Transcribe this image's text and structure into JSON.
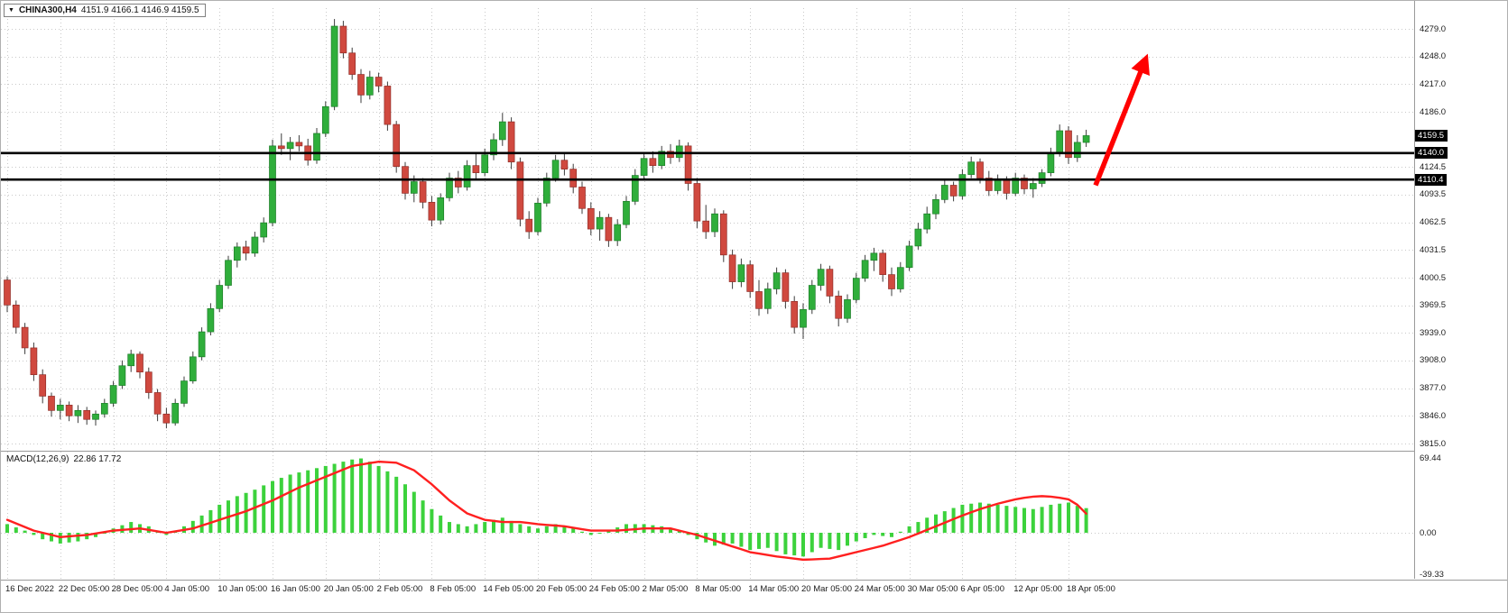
{
  "header": {
    "symbol_period": "CHINA300,H4",
    "ohlc_text": "4151.9 4166.1 4146.9 4159.5"
  },
  "icons": {
    "symbol_dropdown": "▼"
  },
  "colors": {
    "up": "#2fae3b",
    "up_border": "#1d7c28",
    "down": "#d0493f",
    "down_border": "#8f2e28",
    "wick": "#3c3c3c",
    "grid": "#c9c9c9",
    "hline": "#000000",
    "arrow": "#ff0000",
    "macd_bar": "#3cd23c",
    "macd_signal": "#ff2020",
    "badge_bg": "#000000",
    "badge_text": "#ffffff"
  },
  "chart_data": {
    "type": "candlestick",
    "title": "CHINA300,H4",
    "symbol": "CHINA300",
    "timeframe": "H4",
    "ohlc_display": {
      "open": "4151.9",
      "high": "4166.1",
      "low": "4146.9",
      "close": "4159.5"
    },
    "price_axis": {
      "ticks": [
        "4279.0",
        "4248.0",
        "4217.0",
        "4186.0",
        "4124.5",
        "4093.5",
        "4062.5",
        "4031.5",
        "4000.5",
        "3969.5",
        "3939.0",
        "3908.0",
        "3877.0",
        "3846.0",
        "3815.0"
      ],
      "badges": [
        "4159.5",
        "4140.0",
        "4110.4"
      ],
      "range": [
        3815,
        4290
      ]
    },
    "x_axis": {
      "labels": [
        "16 Dec 2022",
        "22 Dec 05:00",
        "28 Dec 05:00",
        "4 Jan 05:00",
        "10 Jan 05:00",
        "16 Jan 05:00",
        "20 Jan 05:00",
        "2 Feb 05:00",
        "8 Feb 05:00",
        "14 Feb 05:00",
        "20 Feb 05:00",
        "24 Feb 05:00",
        "2 Mar 05:00",
        "8 Mar 05:00",
        "14 Mar 05:00",
        "20 Mar 05:00",
        "24 Mar 05:00",
        "30 Mar 05:00",
        "6 Apr 05:00",
        "12 Apr 05:00",
        "18 Apr 05:00"
      ]
    },
    "hlines": [
      4140.0,
      4110.4
    ],
    "arrow": {
      "direction": "up",
      "from_price": 4104,
      "to_price": 4252
    },
    "candles": [
      [
        3998,
        4002,
        3962,
        3970
      ],
      [
        3970,
        3975,
        3938,
        3945
      ],
      [
        3945,
        3950,
        3915,
        3922
      ],
      [
        3922,
        3928,
        3885,
        3892
      ],
      [
        3892,
        3898,
        3860,
        3868
      ],
      [
        3868,
        3872,
        3845,
        3852
      ],
      [
        3852,
        3865,
        3842,
        3858
      ],
      [
        3858,
        3862,
        3840,
        3846
      ],
      [
        3846,
        3858,
        3838,
        3852
      ],
      [
        3852,
        3856,
        3836,
        3842
      ],
      [
        3842,
        3852,
        3835,
        3848
      ],
      [
        3848,
        3865,
        3844,
        3860
      ],
      [
        3860,
        3885,
        3856,
        3880
      ],
      [
        3880,
        3908,
        3876,
        3902
      ],
      [
        3902,
        3920,
        3895,
        3915
      ],
      [
        3915,
        3918,
        3888,
        3895
      ],
      [
        3895,
        3900,
        3865,
        3872
      ],
      [
        3872,
        3876,
        3840,
        3848
      ],
      [
        3848,
        3855,
        3832,
        3838
      ],
      [
        3838,
        3865,
        3835,
        3860
      ],
      [
        3860,
        3890,
        3856,
        3885
      ],
      [
        3885,
        3918,
        3882,
        3912
      ],
      [
        3912,
        3945,
        3908,
        3940
      ],
      [
        3940,
        3972,
        3936,
        3966
      ],
      [
        3966,
        3998,
        3962,
        3992
      ],
      [
        3992,
        4025,
        3988,
        4020
      ],
      [
        4020,
        4040,
        4012,
        4035
      ],
      [
        4035,
        4042,
        4020,
        4028
      ],
      [
        4028,
        4052,
        4024,
        4046
      ],
      [
        4046,
        4068,
        4040,
        4062
      ],
      [
        4062,
        4155,
        4058,
        4148
      ],
      [
        4148,
        4162,
        4138,
        4145
      ],
      [
        4145,
        4158,
        4132,
        4152
      ],
      [
        4152,
        4160,
        4142,
        4148
      ],
      [
        4148,
        4156,
        4126,
        4132
      ],
      [
        4132,
        4168,
        4128,
        4162
      ],
      [
        4162,
        4198,
        4158,
        4192
      ],
      [
        4192,
        4290,
        4188,
        4282
      ],
      [
        4282,
        4288,
        4246,
        4252
      ],
      [
        4252,
        4258,
        4222,
        4228
      ],
      [
        4228,
        4234,
        4196,
        4205
      ],
      [
        4205,
        4232,
        4200,
        4225
      ],
      [
        4225,
        4230,
        4208,
        4215
      ],
      [
        4215,
        4220,
        4165,
        4172
      ],
      [
        4172,
        4176,
        4118,
        4125
      ],
      [
        4125,
        4130,
        4088,
        4095
      ],
      [
        4095,
        4115,
        4085,
        4108
      ],
      [
        4108,
        4112,
        4078,
        4085
      ],
      [
        4085,
        4092,
        4058,
        4065
      ],
      [
        4065,
        4095,
        4060,
        4090
      ],
      [
        4090,
        4118,
        4086,
        4112
      ],
      [
        4112,
        4120,
        4095,
        4102
      ],
      [
        4102,
        4132,
        4098,
        4126
      ],
      [
        4126,
        4140,
        4110,
        4118
      ],
      [
        4118,
        4145,
        4114,
        4138
      ],
      [
        4138,
        4162,
        4132,
        4155
      ],
      [
        4155,
        4185,
        4148,
        4175
      ],
      [
        4175,
        4180,
        4122,
        4130
      ],
      [
        4130,
        4135,
        4058,
        4066
      ],
      [
        4066,
        4075,
        4044,
        4052
      ],
      [
        4052,
        4090,
        4048,
        4084
      ],
      [
        4084,
        4118,
        4080,
        4112
      ],
      [
        4112,
        4138,
        4108,
        4132
      ],
      [
        4132,
        4140,
        4115,
        4122
      ],
      [
        4122,
        4128,
        4095,
        4102
      ],
      [
        4102,
        4108,
        4072,
        4078
      ],
      [
        4078,
        4085,
        4048,
        4055
      ],
      [
        4055,
        4075,
        4042,
        4068
      ],
      [
        4068,
        4072,
        4035,
        4042
      ],
      [
        4042,
        4066,
        4036,
        4060
      ],
      [
        4060,
        4092,
        4056,
        4086
      ],
      [
        4086,
        4122,
        4082,
        4115
      ],
      [
        4115,
        4140,
        4110,
        4134
      ],
      [
        4134,
        4142,
        4118,
        4126
      ],
      [
        4126,
        4148,
        4122,
        4142
      ],
      [
        4142,
        4150,
        4128,
        4135
      ],
      [
        4135,
        4155,
        4130,
        4148
      ],
      [
        4148,
        4152,
        4098,
        4106
      ],
      [
        4106,
        4112,
        4056,
        4064
      ],
      [
        4064,
        4082,
        4044,
        4052
      ],
      [
        4052,
        4078,
        4046,
        4072
      ],
      [
        4072,
        4076,
        4018,
        4026
      ],
      [
        4026,
        4032,
        3988,
        3996
      ],
      [
        3996,
        4022,
        3990,
        4015
      ],
      [
        4015,
        4020,
        3978,
        3985
      ],
      [
        3985,
        3998,
        3958,
        3966
      ],
      [
        3966,
        3995,
        3960,
        3988
      ],
      [
        3988,
        4012,
        3982,
        4006
      ],
      [
        4006,
        4010,
        3966,
        3974
      ],
      [
        3974,
        3980,
        3938,
        3945
      ],
      [
        3945,
        3972,
        3932,
        3965
      ],
      [
        3965,
        3998,
        3960,
        3992
      ],
      [
        3992,
        4016,
        3986,
        4010
      ],
      [
        4010,
        4014,
        3972,
        3980
      ],
      [
        3980,
        3986,
        3946,
        3955
      ],
      [
        3955,
        3982,
        3950,
        3976
      ],
      [
        3976,
        4006,
        3972,
        4000
      ],
      [
        4000,
        4026,
        3996,
        4020
      ],
      [
        4020,
        4034,
        4008,
        4028
      ],
      [
        4028,
        4032,
        3996,
        4004
      ],
      [
        4004,
        4012,
        3980,
        3988
      ],
      [
        3988,
        4018,
        3984,
        4012
      ],
      [
        4012,
        4042,
        4008,
        4036
      ],
      [
        4036,
        4062,
        4032,
        4055
      ],
      [
        4055,
        4080,
        4050,
        4072
      ],
      [
        4072,
        4094,
        4066,
        4088
      ],
      [
        4088,
        4110,
        4084,
        4104
      ],
      [
        4104,
        4108,
        4086,
        4092
      ],
      [
        4092,
        4122,
        4088,
        4116
      ],
      [
        4116,
        4136,
        4112,
        4130
      ],
      [
        4130,
        4134,
        4106,
        4112
      ],
      [
        4112,
        4120,
        4092,
        4098
      ],
      [
        4098,
        4116,
        4094,
        4110
      ],
      [
        4110,
        4114,
        4088,
        4095
      ],
      [
        4095,
        4118,
        4092,
        4112
      ],
      [
        4112,
        4116,
        4094,
        4100
      ],
      [
        4100,
        4112,
        4090,
        4106
      ],
      [
        4106,
        4122,
        4102,
        4118
      ],
      [
        4118,
        4146,
        4114,
        4140
      ],
      [
        4140,
        4172,
        4136,
        4165
      ],
      [
        4165,
        4170,
        4128,
        4135
      ],
      [
        4135,
        4160,
        4130,
        4152
      ],
      [
        4151.9,
        4166.1,
        4146.9,
        4159.5
      ]
    ],
    "macd": {
      "label": "MACD(12,26,9)",
      "values_text": "22.86 17.72",
      "main_value": 22.86,
      "signal_value": 17.72,
      "axis_ticks": [
        "69.44",
        "0.00",
        "-39.33"
      ],
      "histogram": [
        8,
        5,
        2,
        -2,
        -6,
        -8,
        -10,
        -9,
        -8,
        -6,
        -4,
        0,
        4,
        7,
        10,
        8,
        6,
        2,
        -2,
        2,
        6,
        11,
        16,
        21,
        26,
        30,
        34,
        37,
        40,
        44,
        48,
        51,
        54,
        56,
        58,
        60,
        62,
        64,
        66,
        68,
        69,
        66,
        62,
        57,
        52,
        45,
        38,
        30,
        22,
        16,
        10,
        8,
        6,
        8,
        10,
        12,
        14,
        11,
        8,
        6,
        4,
        6,
        8,
        6,
        4,
        1,
        -2,
        0,
        2,
        5,
        8,
        8,
        8,
        7,
        6,
        4,
        2,
        -2,
        -6,
        -9,
        -12,
        -11,
        -10,
        -13,
        -16,
        -15,
        -14,
        -17,
        -20,
        -21,
        -22,
        -18,
        -14,
        -15,
        -16,
        -12,
        -8,
        -5,
        -2,
        -3,
        -4,
        1,
        6,
        10,
        14,
        17,
        20,
        23,
        26,
        27,
        28,
        27,
        26,
        25,
        24,
        23,
        22,
        24,
        26,
        27,
        28,
        25,
        22.86
      ],
      "signal": [
        12,
        8.7,
        5.3,
        2,
        0,
        -2,
        -4,
        -3.3,
        -2.7,
        -2,
        -0.7,
        0.7,
        2,
        2.7,
        3.3,
        4,
        2.7,
        1.3,
        0,
        1.3,
        2.7,
        4,
        6.7,
        9.3,
        12,
        14.7,
        17.3,
        20,
        23.3,
        26.7,
        30,
        34,
        38,
        42,
        45.3,
        48.7,
        52,
        55.3,
        58.7,
        62,
        63.3,
        64.7,
        66,
        65.5,
        65,
        61.5,
        58,
        51.5,
        45,
        37.5,
        30,
        24,
        18,
        15,
        12,
        11,
        10,
        10,
        10,
        9,
        8,
        7.3,
        6.7,
        6,
        4.7,
        3.3,
        2,
        2,
        2,
        2,
        2.7,
        3.3,
        4,
        4,
        4,
        4,
        2,
        0,
        -2,
        -4.7,
        -7.3,
        -10,
        -12.7,
        -15.3,
        -18,
        -19.3,
        -20.7,
        -22,
        -23,
        -24,
        -25,
        -24.7,
        -24.3,
        -24,
        -22,
        -20,
        -18,
        -16,
        -14,
        -12,
        -9.3,
        -6.7,
        -4,
        -0.7,
        2.7,
        6,
        9.3,
        12.7,
        16,
        19,
        22,
        24.5,
        27,
        29,
        31,
        32.5,
        33.5,
        34,
        33.5,
        32.5,
        31,
        26,
        17.72
      ]
    }
  }
}
